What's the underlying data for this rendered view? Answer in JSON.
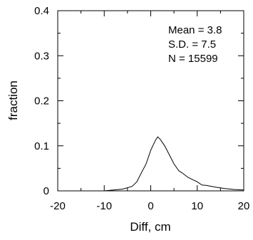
{
  "chart_data": {
    "type": "line",
    "xlabel": "Diff, cm",
    "ylabel": "fraction",
    "xlim": [
      -20,
      20
    ],
    "ylim": [
      0,
      0.4
    ],
    "x_ticks": [
      -20,
      -10,
      0,
      10,
      20
    ],
    "x_tick_labels": [
      "-20",
      "-10",
      "0",
      "10",
      "20"
    ],
    "y_ticks": [
      0,
      0.1,
      0.2,
      0.3,
      0.4
    ],
    "y_tick_labels": [
      "0",
      "0.1",
      "0.2",
      "0.3",
      "0.4"
    ],
    "annotations": [
      "Mean = 3.8",
      "S.D. = 7.5",
      "N = 15599"
    ],
    "grid": false,
    "series": [
      {
        "x": [
          -20,
          -15,
          -10,
          -8,
          -6,
          -4,
          -3,
          -2,
          -1,
          0,
          1,
          1.5,
          2,
          3,
          4,
          5,
          6,
          7,
          8,
          9,
          10,
          11,
          12,
          14,
          16,
          18,
          20
        ],
        "y": [
          0,
          0,
          0,
          0.002,
          0.004,
          0.01,
          0.02,
          0.04,
          0.06,
          0.09,
          0.112,
          0.12,
          0.115,
          0.1,
          0.08,
          0.06,
          0.045,
          0.038,
          0.03,
          0.025,
          0.02,
          0.013,
          0.012,
          0.008,
          0.005,
          0.003,
          0.002
        ]
      }
    ]
  }
}
